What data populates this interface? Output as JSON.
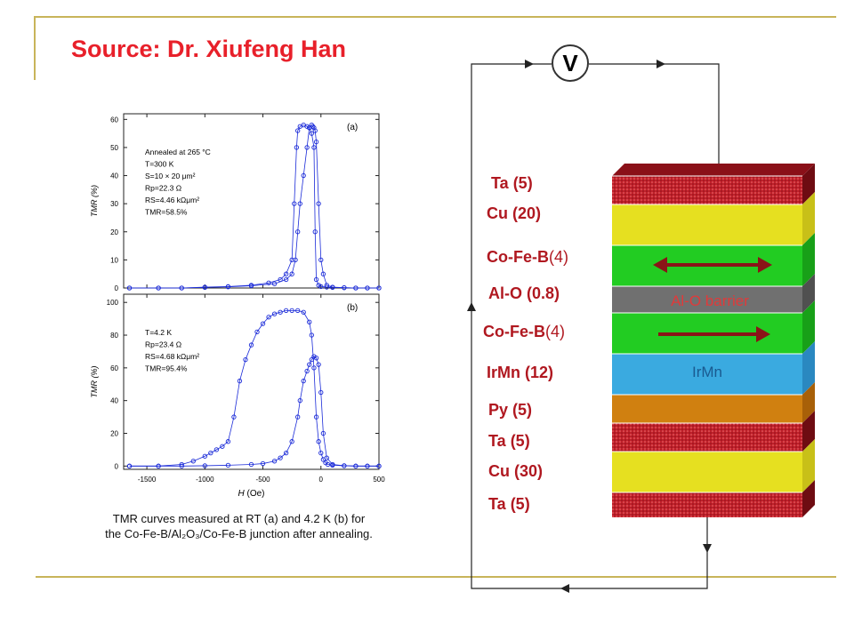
{
  "slide": {
    "title": "Source: Dr. Xiufeng Han"
  },
  "circuit": {
    "meter_label": "V"
  },
  "stack": {
    "layers": [
      {
        "label": "Ta",
        "thickness": "(5)",
        "color": "#c0202a"
      },
      {
        "label": "Cu",
        "thickness": "(20)",
        "color": "#e6e020"
      },
      {
        "label": "Co-Fe-B",
        "thickness": "(4)",
        "color": "#22cc22"
      },
      {
        "label": "Al-O",
        "thickness": "(0.8)",
        "color": "#707070"
      },
      {
        "label": "Co-Fe-B",
        "thickness": "(4)",
        "color": "#22cc22"
      },
      {
        "label": "IrMn",
        "thickness": "(12)",
        "color": "#3aaae0"
      },
      {
        "label": "Py",
        "thickness": "(5)",
        "color": "#d08010"
      },
      {
        "label": "Ta",
        "thickness": "(5)",
        "color": "#c0202a"
      },
      {
        "label": "Cu",
        "thickness": "(30)",
        "color": "#e6e020"
      },
      {
        "label": "Ta",
        "thickness": "(5)",
        "color": "#c0202a"
      }
    ],
    "barrier_text": "Al-O barrier",
    "irmn_text": "IrMn"
  },
  "chart_data": [
    {
      "type": "scatter",
      "panel_label": "(a)",
      "xlim": [
        -1700,
        500
      ],
      "ylim": [
        0,
        62
      ],
      "yticks": [
        0,
        10,
        20,
        30,
        40,
        50,
        60
      ],
      "ylabel": "TMR (%)",
      "annotations": [
        "Annealed at 265 °C",
        "T=300 K",
        "S=10 × 20 μm²",
        "Rp=22.3 Ω",
        "RS=4.46 kΩμm²",
        "TMR=58.5%"
      ],
      "series": [
        {
          "x": [
            -1650,
            -1400,
            -1200,
            -1000,
            -800,
            -600,
            -450,
            -350,
            -300,
            -250,
            -230,
            -210,
            -200,
            -180,
            -150,
            -120,
            -100,
            -80,
            -60,
            -50,
            -40,
            -20,
            0,
            50,
            100,
            200,
            300,
            400,
            500
          ],
          "y": [
            0,
            0,
            0,
            0.3,
            0.5,
            1,
            1.8,
            3,
            5,
            10,
            30,
            50,
            56,
            57.5,
            58,
            57.5,
            57,
            55,
            50,
            20,
            3,
            1,
            0.5,
            0.3,
            0.2,
            0.1,
            0,
            0,
            0
          ]
        },
        {
          "x": [
            500,
            400,
            300,
            200,
            100,
            50,
            20,
            0,
            -20,
            -40,
            -50,
            -60,
            -70,
            -80,
            -100,
            -120,
            -150,
            -180,
            -200,
            -220,
            -250,
            -300,
            -400,
            -600,
            -800,
            -1000,
            -1200,
            -1400,
            -1650
          ],
          "y": [
            0,
            0,
            0,
            0.1,
            0.3,
            1,
            5,
            10,
            30,
            52,
            56,
            57,
            57.5,
            58,
            57,
            50,
            40,
            30,
            20,
            10,
            5,
            3,
            1.5,
            0.8,
            0.4,
            0.2,
            0,
            0,
            0
          ]
        }
      ]
    },
    {
      "type": "scatter",
      "panel_label": "(b)",
      "xlim": [
        -1700,
        500
      ],
      "ylim": [
        -2,
        105
      ],
      "xticks": [
        -1500,
        -1000,
        -500,
        0,
        500
      ],
      "yticks": [
        0,
        20,
        40,
        60,
        80,
        100
      ],
      "xlabel": "H (Oe)",
      "ylabel": "TMR (%)",
      "annotations": [
        "T=4.2 K",
        "Rp=23.4 Ω",
        "RS=4.68 kΩμm²",
        "TMR=95.4%"
      ],
      "series": [
        {
          "x": [
            -1650,
            -1400,
            -1200,
            -1100,
            -1000,
            -950,
            -900,
            -850,
            -800,
            -750,
            -700,
            -650,
            -600,
            -550,
            -500,
            -450,
            -400,
            -350,
            -300,
            -250,
            -200,
            -150,
            -100,
            -80,
            -60,
            -40,
            -20,
            0,
            20,
            40,
            60,
            100,
            200,
            300,
            400,
            500
          ],
          "y": [
            0,
            0,
            1,
            3,
            6,
            8,
            10,
            12,
            15,
            30,
            52,
            65,
            74,
            82,
            87,
            91,
            93,
            94,
            95,
            95,
            95,
            94,
            88,
            80,
            60,
            30,
            15,
            8,
            4,
            2,
            1,
            0.5,
            0.2,
            0,
            0,
            0
          ]
        },
        {
          "x": [
            500,
            400,
            300,
            200,
            100,
            50,
            20,
            0,
            -20,
            -40,
            -60,
            -80,
            -100,
            -120,
            -150,
            -180,
            -200,
            -250,
            -300,
            -350,
            -400,
            -500,
            -600,
            -800,
            -1000,
            -1200,
            -1400,
            -1650
          ],
          "y": [
            0,
            0,
            0,
            0.2,
            1,
            5,
            20,
            45,
            62,
            66,
            67,
            65,
            62,
            58,
            52,
            40,
            30,
            15,
            8,
            5,
            3,
            1.5,
            1,
            0.5,
            0.2,
            0,
            0,
            0
          ]
        }
      ]
    }
  ],
  "plot": {
    "xtick_labels": [
      "-1500",
      "-1000",
      "-500",
      "0",
      "500"
    ],
    "xlabel_main": "H",
    "xlabel_unit": "(Oe)",
    "ylabel": "TMR (%)",
    "marker_color": "#1a2ad8"
  },
  "caption": {
    "line1": "TMR curves measured at RT (a) and 4.2 K (b) for",
    "line2": "the Co-Fe-B/Al₂O₃/Co-Fe-B junction after annealing."
  }
}
